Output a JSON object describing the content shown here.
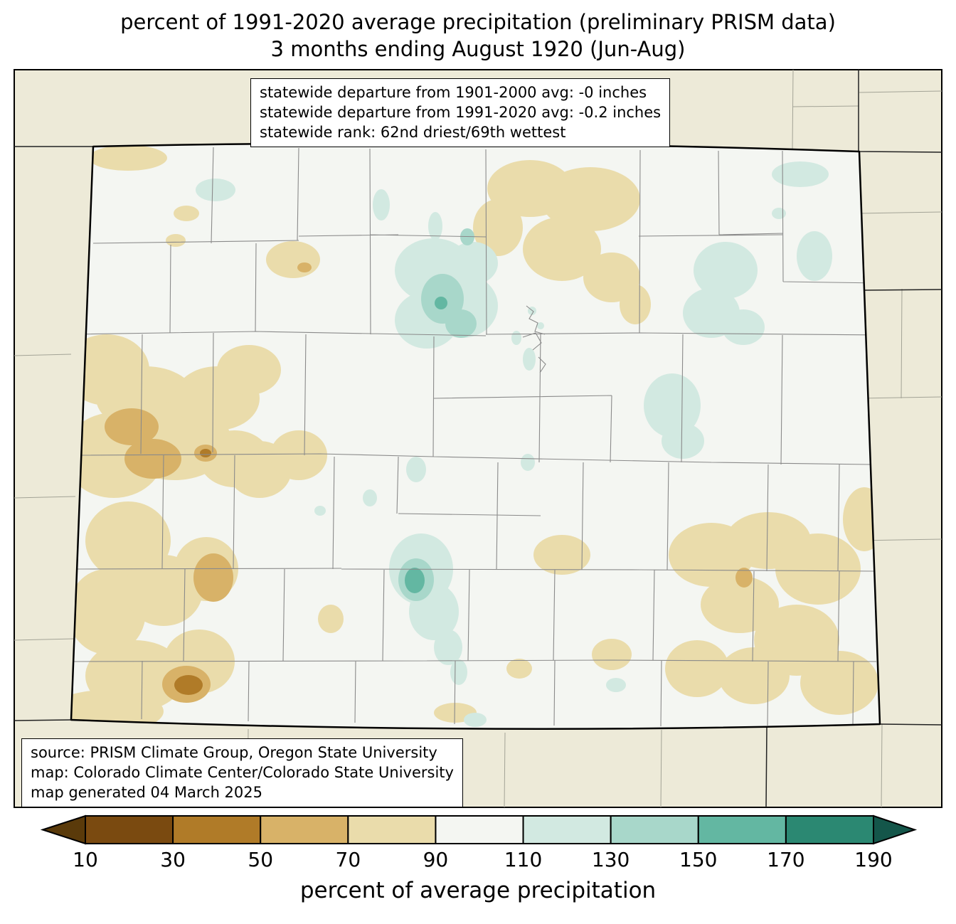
{
  "title": {
    "line1": "percent of 1991-2020 average precipitation (preliminary PRISM data)",
    "line2": "3 months ending August 1920 (Jun-Aug)"
  },
  "stats_box": {
    "line1": "statewide departure from 1901-2000 avg: -0 inches",
    "line2": "statewide departure from 1991-2020 avg: -0.2 inches",
    "line3": "statewide rank: 62nd driest/69th wettest"
  },
  "source_box": {
    "line1": "source: PRISM Climate Group, Oregon State University",
    "line2": "map: Colorado Climate Center/Colorado State University",
    "line3": "map generated 04 March 2025"
  },
  "colorbar": {
    "label": "percent of average precipitation",
    "ticks": [
      10,
      30,
      50,
      70,
      90,
      110,
      130,
      150,
      170,
      190
    ],
    "segment_levels": [
      "lvl_10_30",
      "lvl_30_50",
      "lvl_50_70",
      "lvl_70_90",
      "lvl_90_110",
      "lvl_110_130",
      "lvl_130_150",
      "lvl_150_170",
      "lvl_170_190"
    ],
    "under_level": "under_10",
    "over_level": "over_190"
  },
  "palette": {
    "under_10": "#5a3a0a",
    "lvl_10_30": "#7a4a10",
    "lvl_30_50": "#b07b28",
    "lvl_50_70": "#d8b268",
    "lvl_70_90": "#eadcab",
    "lvl_90_110": "#f4f6f2",
    "lvl_110_130": "#d2e9e1",
    "lvl_130_150": "#a8d7ca",
    "lvl_150_170": "#63b7a2",
    "lvl_170_190": "#2b8872",
    "over_190": "#14564a",
    "outside": "#edead8",
    "inside": "#f4f6f2"
  },
  "map": {
    "region_name": "Colorado",
    "state_border_color": "#000000",
    "county_line_color": "#8a8a8a"
  }
}
